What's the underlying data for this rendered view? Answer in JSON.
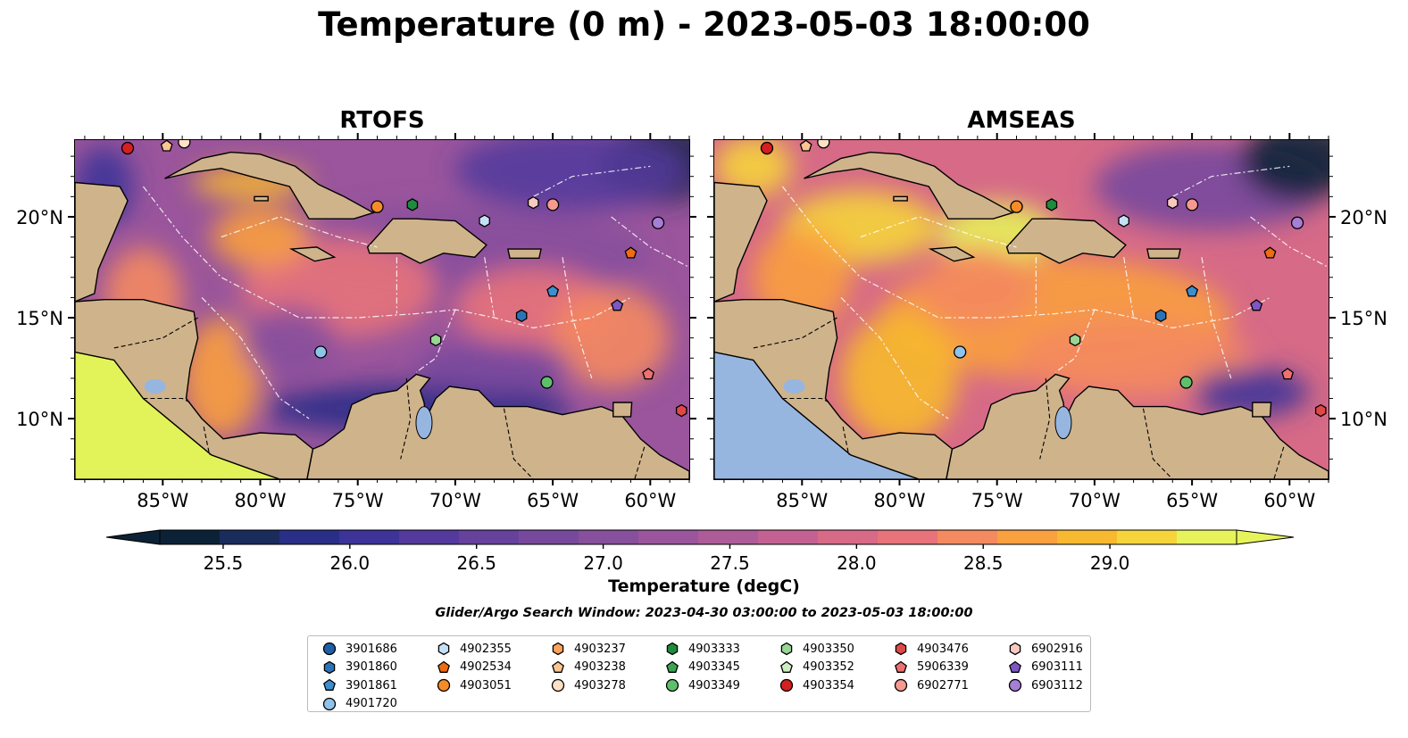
{
  "figure": {
    "title": "Temperature (0 m) - 2023-05-03 18:00:00",
    "search_window": "Glider/Argo Search Window: 2023-04-30 03:00:00 to 2023-05-03 18:00:00"
  },
  "maps": [
    {
      "id": "rtofs",
      "title": "RTOFS"
    },
    {
      "id": "amseas",
      "title": "AMSEAS"
    }
  ],
  "axes": {
    "lon_ticks": [
      "85°W",
      "80°W",
      "75°W",
      "70°W",
      "65°W",
      "60°W"
    ],
    "lat_ticks": [
      "20°N",
      "15°N",
      "10°N"
    ],
    "lon_range": [
      -89.5,
      -58.0
    ],
    "lat_range": [
      7.0,
      23.8
    ]
  },
  "colorbar": {
    "label": "Temperature (degC)",
    "range": [
      25.25,
      29.5
    ],
    "tick_labels": [
      "25.5",
      "26.0",
      "26.5",
      "27.0",
      "27.5",
      "28.0",
      "28.5",
      "29.0"
    ],
    "extend": "both",
    "colormap": "thermal",
    "colors": [
      "#0b2236",
      "#1a2c5c",
      "#292f87",
      "#3d3399",
      "#533a9c",
      "#66429d",
      "#77499d",
      "#874f9c",
      "#9a559c",
      "#ae5c99",
      "#c36292",
      "#d66a87",
      "#e8737a",
      "#f48a5f",
      "#f9a03f",
      "#f7b92f",
      "#f5d43c",
      "#e7f35a"
    ]
  },
  "legend": {
    "items": [
      {
        "id": "3901686",
        "marker": "circle",
        "color": "#1f5fa8"
      },
      {
        "id": "3901860",
        "marker": "hexagon",
        "color": "#2b73b8"
      },
      {
        "id": "3901861",
        "marker": "pentagon",
        "color": "#3a8fd0"
      },
      {
        "id": "4901720",
        "marker": "circle",
        "color": "#8fc3ea"
      },
      {
        "id": "4902355",
        "marker": "hexagon",
        "color": "#c6e0f5"
      },
      {
        "id": "4902534",
        "marker": "pentagon",
        "color": "#ee6c12"
      },
      {
        "id": "4903051",
        "marker": "circle",
        "color": "#f68c28"
      },
      {
        "id": "4903237",
        "marker": "hexagon",
        "color": "#f9a35b"
      },
      {
        "id": "4903238",
        "marker": "pentagon",
        "color": "#fbc592"
      },
      {
        "id": "4903278",
        "marker": "circle",
        "color": "#fde0c6"
      },
      {
        "id": "4903333",
        "marker": "hexagon",
        "color": "#1f8b3d"
      },
      {
        "id": "4903345",
        "marker": "pentagon",
        "color": "#3da352"
      },
      {
        "id": "4903349",
        "marker": "circle",
        "color": "#5fc06b"
      },
      {
        "id": "4903350",
        "marker": "hexagon",
        "color": "#99d594"
      },
      {
        "id": "4903352",
        "marker": "pentagon",
        "color": "#cdedc3"
      },
      {
        "id": "4903354",
        "marker": "circle",
        "color": "#d42020"
      },
      {
        "id": "4903476",
        "marker": "hexagon",
        "color": "#e04848"
      },
      {
        "id": "5906339",
        "marker": "pentagon",
        "color": "#f07070"
      },
      {
        "id": "6902771",
        "marker": "circle",
        "color": "#f59a90"
      },
      {
        "id": "6902916",
        "marker": "hexagon",
        "color": "#f9c9c0"
      },
      {
        "id": "6903111",
        "marker": "pentagon",
        "color": "#7e57c2"
      },
      {
        "id": "6903112",
        "marker": "circle",
        "color": "#a67ed6"
      }
    ]
  },
  "observations": [
    {
      "id": "4903354",
      "lon": -86.8,
      "lat": 23.4
    },
    {
      "id": "4903238",
      "lon": -84.8,
      "lat": 23.5
    },
    {
      "id": "4903278",
      "lon": -83.9,
      "lat": 23.7
    },
    {
      "id": "4903051",
      "lon": -74.0,
      "lat": 20.5
    },
    {
      "id": "4903333",
      "lon": -72.2,
      "lat": 20.6
    },
    {
      "id": "4902355",
      "lon": -68.5,
      "lat": 19.8
    },
    {
      "id": "6902916",
      "lon": -66.0,
      "lat": 20.7
    },
    {
      "id": "6902771",
      "lon": -65.0,
      "lat": 20.6
    },
    {
      "id": "6903112",
      "lon": -59.6,
      "lat": 19.7
    },
    {
      "id": "4902534",
      "lon": -61.0,
      "lat": 18.2
    },
    {
      "id": "3901861",
      "lon": -65.0,
      "lat": 16.3
    },
    {
      "id": "6903111",
      "lon": -61.7,
      "lat": 15.6
    },
    {
      "id": "3901860",
      "lon": -66.6,
      "lat": 15.1
    },
    {
      "id": "4903350",
      "lon": -71.0,
      "lat": 13.9
    },
    {
      "id": "4901720",
      "lon": -76.9,
      "lat": 13.3
    },
    {
      "id": "5906339",
      "lon": -60.1,
      "lat": 12.2
    },
    {
      "id": "4903349",
      "lon": -65.3,
      "lat": 11.8
    },
    {
      "id": "4903476",
      "lon": -58.4,
      "lat": 10.4
    }
  ]
}
